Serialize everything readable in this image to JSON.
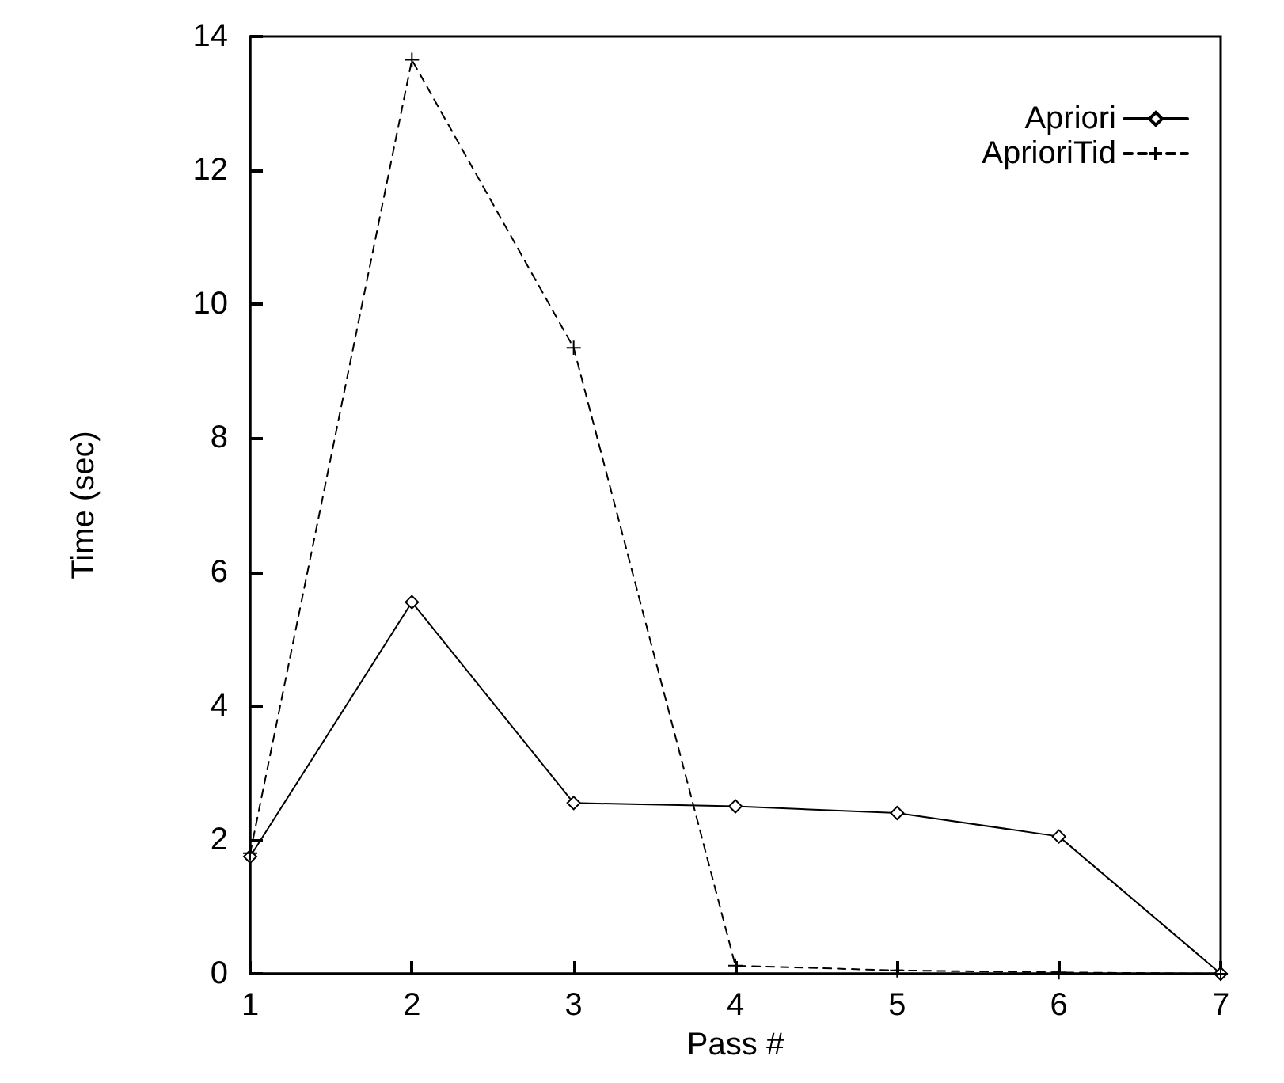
{
  "chart_data": {
    "type": "line",
    "xlabel": "Pass #",
    "ylabel": "Time (sec)",
    "x": [
      1,
      2,
      3,
      4,
      5,
      6,
      7
    ],
    "xlim": [
      1,
      7
    ],
    "xticks": [
      1,
      2,
      3,
      4,
      5,
      6,
      7
    ],
    "ylim": [
      0,
      14
    ],
    "yticks": [
      0,
      2,
      4,
      6,
      8,
      10,
      12,
      14
    ],
    "grid": false,
    "legend": "top right",
    "series": [
      {
        "name": "Apriori",
        "color": "#000000",
        "marker": "diamond",
        "line_style": "solid",
        "values": [
          1.75,
          5.55,
          2.55,
          2.5,
          2.4,
          2.05,
          0
        ]
      },
      {
        "name": "AprioriTid",
        "color": "#000000",
        "marker": "cross",
        "line_style": "dashed",
        "values": [
          1.8,
          13.65,
          9.35,
          0.12,
          0.05,
          0.02,
          0
        ]
      }
    ]
  }
}
